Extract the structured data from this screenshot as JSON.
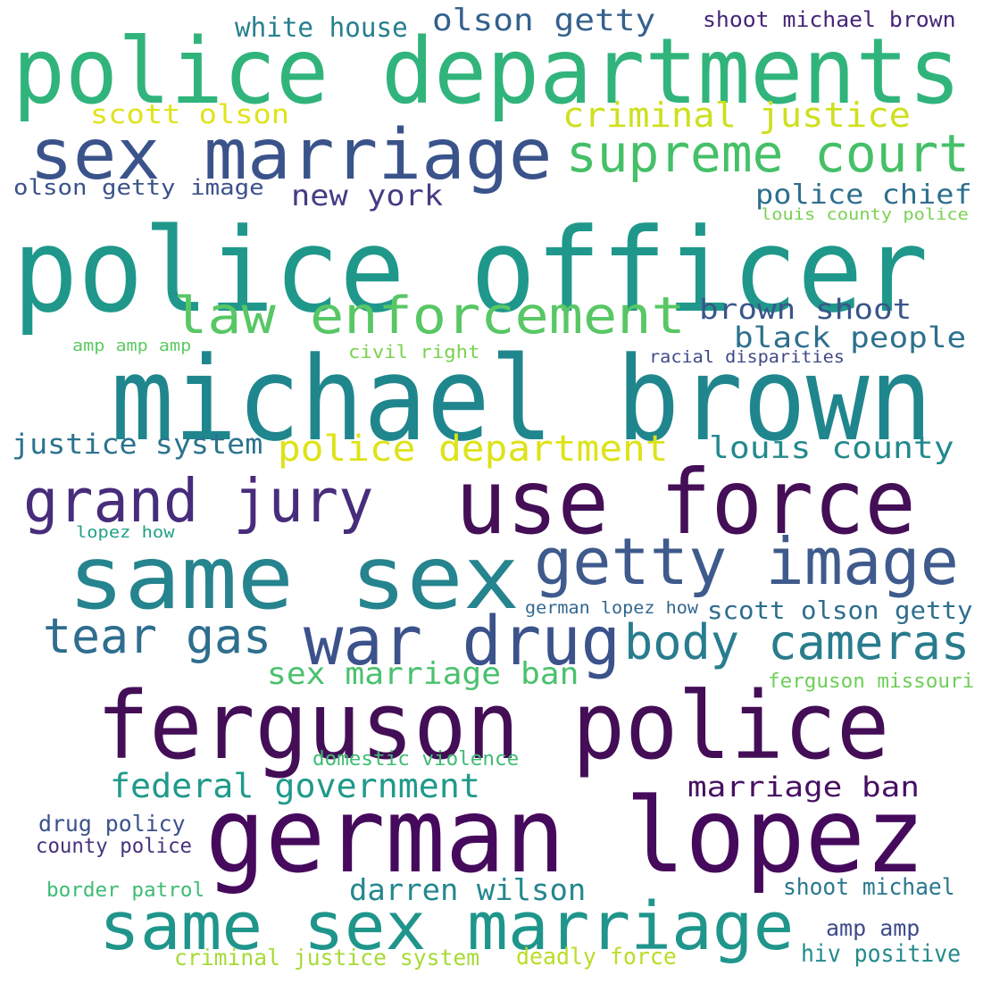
{
  "words": [
    {
      "text": "police departments",
      "color": "#30b47b"
    },
    {
      "text": "police officer",
      "color": "#1f988b"
    },
    {
      "text": "michael brown",
      "color": "#20868d"
    },
    {
      "text": "sex marriage",
      "color": "#3a538b"
    },
    {
      "text": "supreme court",
      "color": "#45c068"
    },
    {
      "text": "criminal justice",
      "color": "#cee01e"
    },
    {
      "text": "olson getty",
      "color": "#34618d"
    },
    {
      "text": "white house",
      "color": "#277f8e"
    },
    {
      "text": "shoot michael brown",
      "color": "#482677"
    },
    {
      "text": "scott olson",
      "color": "#e0e31a"
    },
    {
      "text": "olson getty image",
      "color": "#3b528b"
    },
    {
      "text": "new york",
      "color": "#433d84"
    },
    {
      "text": "police chief",
      "color": "#2d6f8e"
    },
    {
      "text": "louis county police",
      "color": "#7ad151"
    },
    {
      "text": "law enforcement",
      "color": "#58c765"
    },
    {
      "text": "brown shoot",
      "color": "#39568c"
    },
    {
      "text": "black people",
      "color": "#2d718e"
    },
    {
      "text": "amp amp amp",
      "color": "#5ec962"
    },
    {
      "text": "civil right",
      "color": "#7ad151"
    },
    {
      "text": "racial disparities",
      "color": "#3e4989"
    },
    {
      "text": "justice system",
      "color": "#2c738e"
    },
    {
      "text": "police department",
      "color": "#dde318"
    },
    {
      "text": "louis county",
      "color": "#23898e"
    },
    {
      "text": "grand jury",
      "color": "#472d7b"
    },
    {
      "text": "use force",
      "color": "#440f57"
    },
    {
      "text": "same sex",
      "color": "#25848e"
    },
    {
      "text": "getty image",
      "color": "#3f5a8c"
    },
    {
      "text": "lopez how",
      "color": "#1fa188"
    },
    {
      "text": "german lopez how",
      "color": "#31668e"
    },
    {
      "text": "scott olson getty",
      "color": "#2e6e8e"
    },
    {
      "text": "tear gas",
      "color": "#2e6e8e"
    },
    {
      "text": "war drug",
      "color": "#3b528b"
    },
    {
      "text": "body cameras",
      "color": "#287c8e"
    },
    {
      "text": "sex marriage ban",
      "color": "#4ac16d"
    },
    {
      "text": "ferguson missouri",
      "color": "#6ece58"
    },
    {
      "text": "ferguson police",
      "color": "#440e57"
    },
    {
      "text": "domestic violence",
      "color": "#3fbc73"
    },
    {
      "text": "federal government",
      "color": "#1f9a8a"
    },
    {
      "text": "marriage ban",
      "color": "#471063"
    },
    {
      "text": "drug policy",
      "color": "#3b528b"
    },
    {
      "text": "county police",
      "color": "#46337e"
    },
    {
      "text": "german lopez",
      "color": "#460a5d"
    },
    {
      "text": "border patrol",
      "color": "#3dbc74"
    },
    {
      "text": "darren wilson",
      "color": "#24878e"
    },
    {
      "text": "shoot michael",
      "color": "#2a788e"
    },
    {
      "text": "same sex marriage",
      "color": "#1f958b"
    },
    {
      "text": "amp amp",
      "color": "#3e4c8a"
    },
    {
      "text": "criminal justice system",
      "color": "#a5db36"
    },
    {
      "text": "deadly force",
      "color": "#b8de29"
    },
    {
      "text": "hiv positive",
      "color": "#238a8d"
    }
  ]
}
